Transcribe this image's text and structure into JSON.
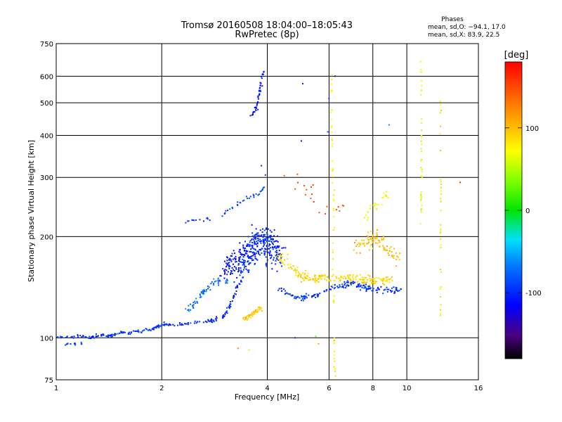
{
  "chart_data": {
    "type": "scatter",
    "title": "Tromsø 20160508 18:04:00–18:05:43",
    "subtitle": "RwPretec (8p)",
    "xlabel": "Frequency [MHz]",
    "ylabel": "Stationary phase Virtual Height [km]",
    "x_scale": "log",
    "y_scale": "log",
    "xlim": [
      1,
      16
    ],
    "ylim": [
      75,
      750
    ],
    "x_ticks": [
      1,
      2,
      4,
      6,
      8,
      10,
      16
    ],
    "y_ticks": [
      75,
      100,
      200,
      300,
      400,
      500,
      600,
      750
    ],
    "grid": true,
    "stats": {
      "heading": "Phases",
      "line1": "mean, sd,O: −94.1, 17.0",
      "line2": "mean, sd,X:  83.9, 22.5"
    },
    "colorbar": {
      "label": "[deg]",
      "range": [
        -180,
        180
      ],
      "ticks": [
        100,
        0,
        -100
      ]
    },
    "traces": [
      {
        "pts": [
          [
            1.0,
            100
          ],
          [
            1.05,
            101
          ],
          [
            1.1,
            100
          ],
          [
            1.15,
            101
          ],
          [
            1.2,
            101
          ],
          [
            1.25,
            100
          ],
          [
            1.3,
            101
          ],
          [
            1.35,
            102
          ],
          [
            1.4,
            101
          ],
          [
            1.45,
            102
          ],
          [
            1.5,
            103
          ],
          [
            1.55,
            104
          ],
          [
            1.6,
            103
          ],
          [
            1.65,
            104
          ],
          [
            1.7,
            105
          ],
          [
            1.75,
            104
          ],
          [
            1.8,
            106
          ],
          [
            1.85,
            105
          ],
          [
            1.9,
            107
          ],
          [
            1.95,
            108
          ],
          [
            2.0,
            109
          ],
          [
            2.05,
            110
          ],
          [
            2.1,
            109
          ]
        ],
        "n": 140,
        "sx": 0.008,
        "sy": 0.008,
        "phase": -95
      },
      {
        "pts": [
          [
            1.05,
            95
          ],
          [
            1.12,
            96
          ],
          [
            1.18,
            96
          ]
        ],
        "n": 12,
        "sx": 0.01,
        "sy": 0.008,
        "phase": -95
      },
      {
        "pts": [
          [
            2.1,
            109
          ],
          [
            2.3,
            110
          ],
          [
            2.5,
            111
          ],
          [
            2.7,
            112
          ],
          [
            2.85,
            113
          ],
          [
            3.0,
            116
          ],
          [
            3.1,
            122
          ],
          [
            3.2,
            132
          ],
          [
            3.3,
            142
          ],
          [
            3.4,
            150
          ]
        ],
        "n": 90,
        "sx": 0.008,
        "sy": 0.012,
        "phase": -100
      },
      {
        "pts": [
          [
            2.35,
            120
          ],
          [
            2.5,
            128
          ],
          [
            2.65,
            138
          ],
          [
            2.8,
            145
          ],
          [
            2.95,
            150
          ],
          [
            3.1,
            147
          ]
        ],
        "n": 60,
        "sx": 0.01,
        "sy": 0.02,
        "phase": -75
      },
      {
        "pts": [
          [
            2.35,
            222
          ],
          [
            2.6,
            225
          ],
          [
            2.8,
            228
          ],
          [
            3.0,
            235
          ],
          [
            3.2,
            245
          ],
          [
            3.4,
            255
          ],
          [
            3.6,
            262
          ],
          [
            3.8,
            270
          ],
          [
            4.0,
            285
          ]
        ],
        "n": 45,
        "sx": 0.008,
        "sy": 0.015,
        "phase": -90
      },
      {
        "pts": [
          [
            3.6,
            455
          ],
          [
            3.7,
            480
          ],
          [
            3.75,
            500
          ],
          [
            3.8,
            540
          ],
          [
            3.85,
            580
          ],
          [
            3.9,
            620
          ]
        ],
        "n": 45,
        "sx": 0.006,
        "sy": 0.015,
        "phase": -110
      },
      {
        "pts": [
          [
            3.3,
            160
          ],
          [
            3.5,
            175
          ],
          [
            3.7,
            190
          ],
          [
            3.9,
            200
          ],
          [
            4.1,
            185
          ],
          [
            4.3,
            170
          ]
        ],
        "n": 320,
        "sx": 0.06,
        "sy": 0.09,
        "phase": -100
      },
      {
        "pts": [
          [
            3.0,
            155
          ],
          [
            3.2,
            170
          ],
          [
            3.4,
            180
          ]
        ],
        "n": 60,
        "sx": 0.03,
        "sy": 0.06,
        "phase": -110
      },
      {
        "pts": [
          [
            4.3,
            140
          ],
          [
            4.6,
            134
          ],
          [
            5.0,
            132
          ],
          [
            5.5,
            134
          ],
          [
            6.0,
            140
          ],
          [
            6.5,
            143
          ],
          [
            7.0,
            146
          ],
          [
            7.5,
            142
          ],
          [
            8.0,
            140
          ],
          [
            9.0,
            138
          ],
          [
            9.7,
            140
          ]
        ],
        "n": 170,
        "sx": 0.015,
        "sy": 0.02,
        "phase": -95
      },
      {
        "pts": [
          [
            3.4,
            113
          ],
          [
            3.55,
            116
          ],
          [
            3.7,
            119
          ],
          [
            3.85,
            123
          ]
        ],
        "n": 45,
        "sx": 0.012,
        "sy": 0.015,
        "phase": 95
      },
      {
        "pts": [
          [
            4.3,
            175
          ],
          [
            4.6,
            165
          ],
          [
            4.9,
            155
          ],
          [
            5.2,
            150
          ],
          [
            5.6,
            150
          ],
          [
            6.0,
            150
          ],
          [
            6.5,
            150
          ],
          [
            7.2,
            150
          ],
          [
            7.8,
            148
          ],
          [
            8.5,
            148
          ],
          [
            9.0,
            150
          ]
        ],
        "n": 210,
        "sx": 0.02,
        "sy": 0.03,
        "phase": 90
      },
      {
        "pts": [
          [
            7.2,
            185
          ],
          [
            7.8,
            195
          ],
          [
            8.2,
            200
          ],
          [
            8.6,
            190
          ],
          [
            9.0,
            180
          ],
          [
            9.5,
            175
          ]
        ],
        "n": 90,
        "sx": 0.03,
        "sy": 0.05,
        "phase": 100
      },
      {
        "pts": [
          [
            7.5,
            230
          ],
          [
            8.0,
            240
          ],
          [
            8.5,
            255
          ],
          [
            8.8,
            270
          ]
        ],
        "n": 25,
        "sx": 0.02,
        "sy": 0.04,
        "phase": 70
      },
      {
        "pts": [
          [
            6.1,
            600
          ],
          [
            6.1,
            500
          ],
          [
            6.1,
            420
          ],
          [
            6.15,
            350
          ],
          [
            6.15,
            300
          ],
          [
            6.2,
            260
          ],
          [
            6.2,
            220
          ],
          [
            6.15,
            180
          ],
          [
            6.2,
            120
          ],
          [
            6.2,
            90
          ],
          [
            6.25,
            78
          ]
        ],
        "n": 60,
        "sx": 0.004,
        "sy": 0.05,
        "phase": 75
      },
      {
        "pts": [
          [
            11,
            650
          ],
          [
            11,
            560
          ],
          [
            11,
            470
          ],
          [
            11,
            380
          ],
          [
            11,
            330
          ],
          [
            11,
            280
          ],
          [
            11,
            240
          ],
          [
            11,
            210
          ]
        ],
        "n": 35,
        "sx": 0.004,
        "sy": 0.05,
        "phase": 60
      },
      {
        "pts": [
          [
            12.5,
            520
          ],
          [
            12.5,
            420
          ],
          [
            12.5,
            350
          ],
          [
            12.5,
            300
          ],
          [
            12.5,
            260
          ],
          [
            12.5,
            220
          ],
          [
            12.5,
            180
          ],
          [
            12.5,
            140
          ],
          [
            12.5,
            110
          ]
        ],
        "n": 35,
        "sx": 0.004,
        "sy": 0.05,
        "phase": 85
      },
      {
        "pts": [
          [
            4.5,
            290
          ],
          [
            5.0,
            285
          ],
          [
            5.5,
            250
          ],
          [
            6.5,
            240
          ],
          [
            7.0,
            250
          ]
        ],
        "n": 20,
        "sx": 0.04,
        "sy": 0.1,
        "phase": 150
      }
    ],
    "extra_points": [
      [
        5.05,
        570,
        -100
      ],
      [
        5.0,
        385,
        -110
      ],
      [
        6.0,
        515,
        -90
      ],
      [
        5.95,
        410,
        -80
      ],
      [
        8.9,
        430,
        -60
      ],
      [
        3.85,
        325,
        -100
      ],
      [
        3.95,
        305,
        -100
      ],
      [
        14.2,
        290,
        160
      ],
      [
        3.3,
        93,
        120
      ],
      [
        3.55,
        92,
        60
      ],
      [
        5.6,
        96,
        110
      ],
      [
        6.25,
        600,
        -110
      ],
      [
        4.8,
        100,
        -95
      ],
      [
        5.5,
        101,
        30
      ]
    ]
  }
}
